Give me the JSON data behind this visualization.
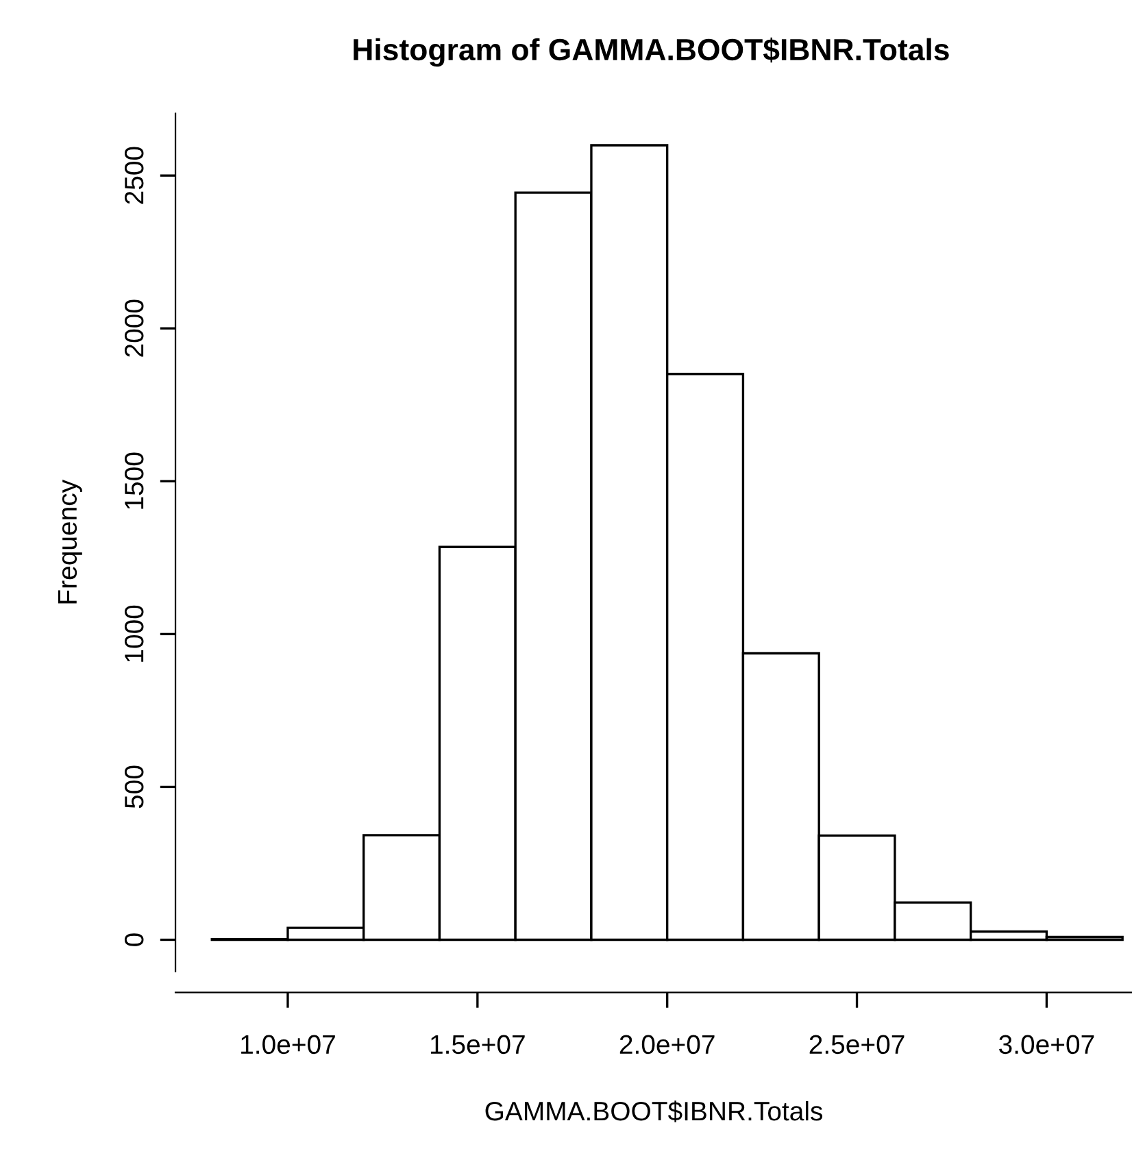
{
  "chart_data": {
    "type": "histogram",
    "title": "Histogram of GAMMA.BOOT$IBNR.Totals",
    "xlabel": "GAMMA.BOOT$IBNR.Totals",
    "ylabel": "Frequency",
    "bins": [
      8000000,
      10000000,
      12000000,
      14000000,
      16000000,
      18000000,
      20000000,
      22000000,
      24000000,
      26000000,
      28000000,
      30000000,
      32000000
    ],
    "values": [
      2,
      39,
      342,
      1285,
      2444,
      2599,
      1851,
      937,
      341,
      122,
      27,
      9
    ],
    "color": "#ffffff",
    "xlim": [
      7040000,
      32250000
    ],
    "xticks": [
      {
        "value": 10000000,
        "label": "1.0e+07"
      },
      {
        "value": 15000000,
        "label": "1.5e+07"
      },
      {
        "value": 20000000,
        "label": "2.0e+07"
      },
      {
        "value": 25000000,
        "label": "2.5e+07"
      },
      {
        "value": 30000000,
        "label": "3.0e+07"
      }
    ],
    "ylim": [
      -104,
      2703
    ],
    "yticks": [
      0,
      500,
      1000,
      1500,
      2000,
      2500
    ],
    "grid": false
  }
}
